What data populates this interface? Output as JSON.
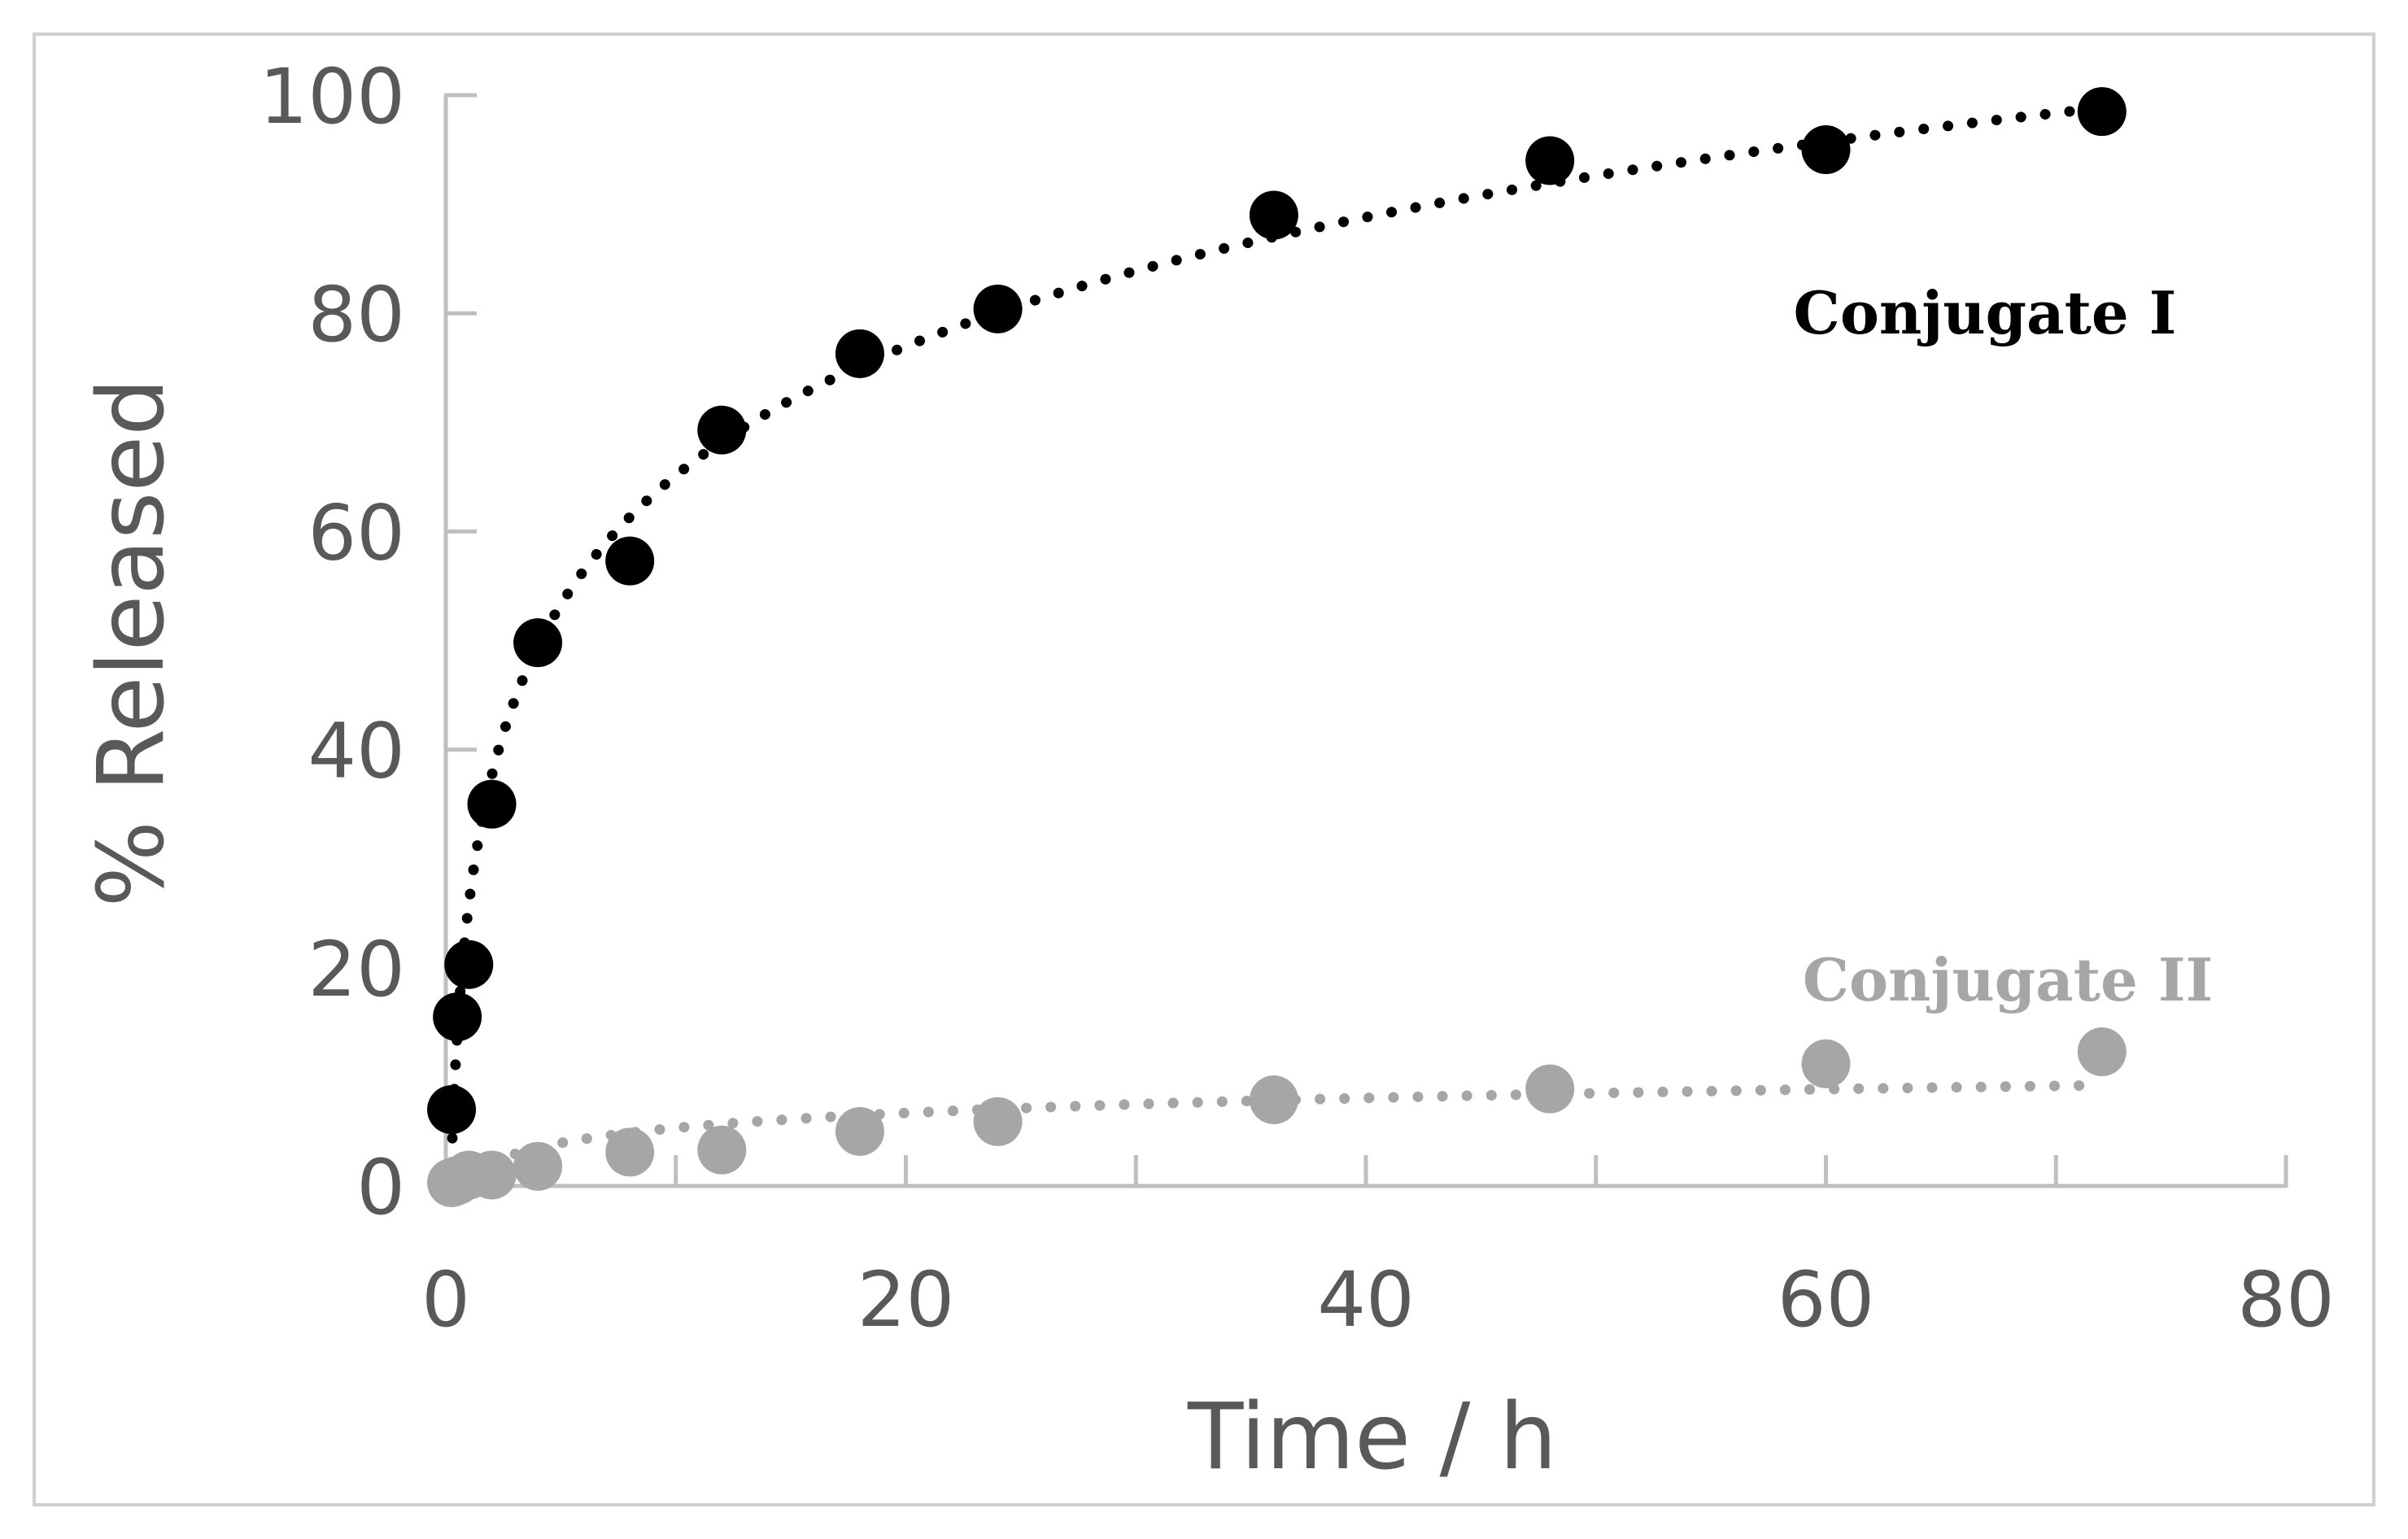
{
  "chart_data": {
    "type": "scatter",
    "title": "",
    "xlabel": "Time / h",
    "ylabel": "% Released",
    "xlim": [
      0,
      80
    ],
    "ylim": [
      0,
      100
    ],
    "x_ticks": [
      "0",
      "20",
      "40",
      "60",
      "80"
    ],
    "y_ticks": [
      "0",
      "20",
      "40",
      "60",
      "80",
      "100"
    ],
    "grid": false,
    "trendline": "logarithmic (dotted)",
    "series": [
      {
        "name": "Conjugate I",
        "color": "#000000",
        "x": [
          0.25,
          0.5,
          1,
          2,
          4,
          8,
          12,
          18,
          24,
          36,
          48,
          60,
          72
        ],
        "y": [
          7,
          15.5,
          20.3,
          35,
          49.8,
          57.3,
          69.3,
          76.3,
          80.4,
          89,
          94,
          95,
          98.5
        ]
      },
      {
        "name": "Conjugate II",
        "color": "#a6a6a6",
        "x": [
          0.25,
          0.5,
          1,
          2,
          4,
          8,
          12,
          18,
          24,
          36,
          48,
          60,
          72
        ],
        "y": [
          0.3,
          0.5,
          1,
          1,
          1.8,
          3.1,
          3.3,
          5,
          5.9,
          7.9,
          8.9,
          11.2,
          12.3
        ]
      }
    ]
  }
}
